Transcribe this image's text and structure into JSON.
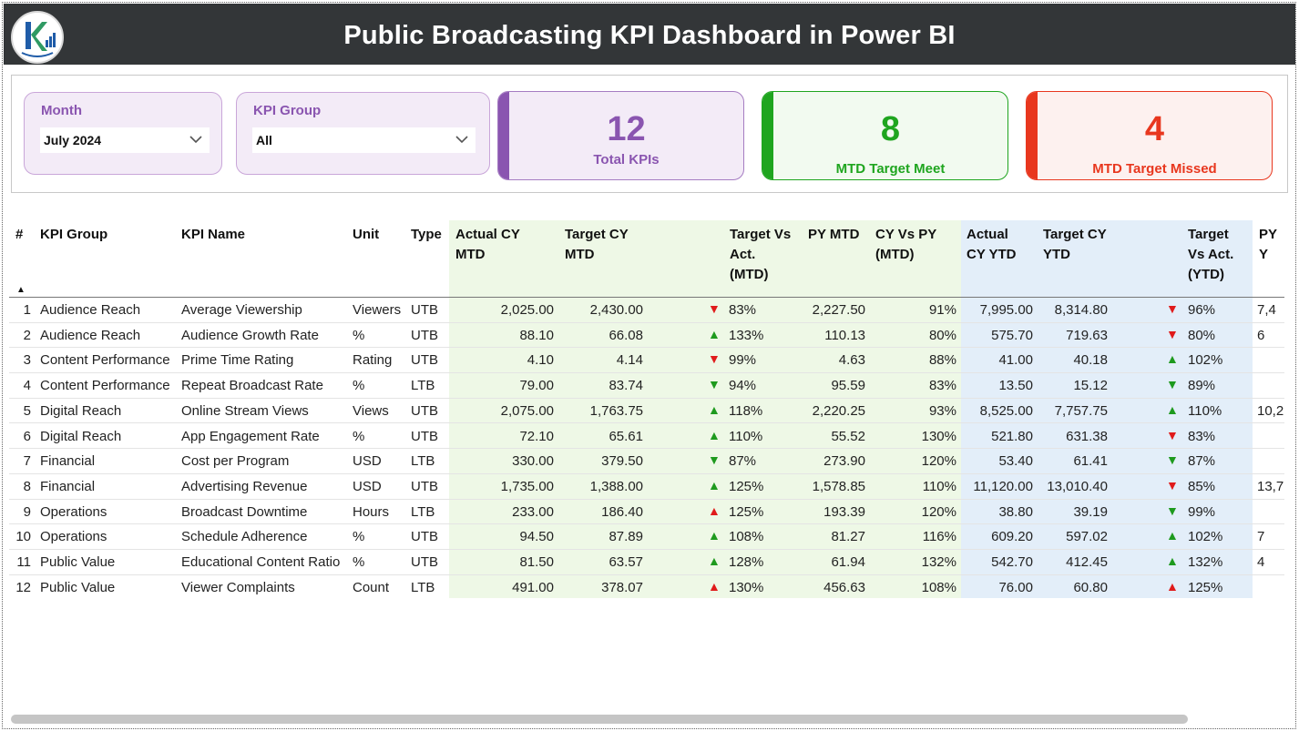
{
  "header": {
    "title": "Public Broadcasting KPI Dashboard in Power BI"
  },
  "filters": {
    "month": {
      "label": "Month",
      "value": "July 2024"
    },
    "kpi_group": {
      "label": "KPI Group",
      "value": "All"
    }
  },
  "cards": {
    "total": {
      "value": "12",
      "caption": "Total KPIs",
      "color": "#8a55b0"
    },
    "meet": {
      "value": "8",
      "caption": "MTD Target Meet",
      "color": "#1fa51f"
    },
    "missed": {
      "value": "4",
      "caption": "MTD Target Missed",
      "color": "#e8371e"
    }
  },
  "table": {
    "headers": {
      "num": "#",
      "group": "KPI Group",
      "name": "KPI Name",
      "unit": "Unit",
      "type": "Type",
      "actual_mtd_1": "Actual CY",
      "actual_mtd_2": "MTD",
      "target_mtd_1": "Target CY",
      "target_mtd_2": "MTD",
      "tva_mtd_1": "Target Vs",
      "tva_mtd_2": "Act.",
      "tva_mtd_3": "(MTD)",
      "py_mtd": "PY MTD",
      "cvp_mtd_1": "CY Vs PY",
      "cvp_mtd_2": "(MTD)",
      "actual_ytd_1": "Actual",
      "actual_ytd_2": "CY YTD",
      "target_ytd_1": "Target CY",
      "target_ytd_2": "YTD",
      "tva_ytd_1": "Target",
      "tva_ytd_2": "Vs Act.",
      "tva_ytd_3": "(YTD)",
      "py_ytd": "PY Y"
    },
    "rows": [
      {
        "num": "1",
        "group": "Audience Reach",
        "name": "Average Viewership",
        "unit": "Viewers",
        "type": "UTB",
        "actual_mtd": "2,025.00",
        "target_mtd": "2,430.00",
        "mtd_icon": "down-red",
        "tva_mtd": "83%",
        "py_mtd": "2,227.50",
        "cvp_mtd": "91%",
        "actual_ytd": "7,995.00",
        "target_ytd": "8,314.80",
        "ytd_icon": "down-red",
        "tva_ytd": "96%",
        "py_ytd": "7,4"
      },
      {
        "num": "2",
        "group": "Audience Reach",
        "name": "Audience Growth Rate",
        "unit": "%",
        "type": "UTB",
        "actual_mtd": "88.10",
        "target_mtd": "66.08",
        "mtd_icon": "up-green",
        "tva_mtd": "133%",
        "py_mtd": "110.13",
        "cvp_mtd": "80%",
        "actual_ytd": "575.70",
        "target_ytd": "719.63",
        "ytd_icon": "down-red",
        "tva_ytd": "80%",
        "py_ytd": "6"
      },
      {
        "num": "3",
        "group": "Content Performance",
        "name": "Prime Time Rating",
        "unit": "Rating",
        "type": "UTB",
        "actual_mtd": "4.10",
        "target_mtd": "4.14",
        "mtd_icon": "down-red",
        "tva_mtd": "99%",
        "py_mtd": "4.63",
        "cvp_mtd": "88%",
        "actual_ytd": "41.00",
        "target_ytd": "40.18",
        "ytd_icon": "up-green",
        "tva_ytd": "102%",
        "py_ytd": ""
      },
      {
        "num": "4",
        "group": "Content Performance",
        "name": "Repeat Broadcast Rate",
        "unit": "%",
        "type": "LTB",
        "actual_mtd": "79.00",
        "target_mtd": "83.74",
        "mtd_icon": "down-green",
        "tva_mtd": "94%",
        "py_mtd": "95.59",
        "cvp_mtd": "83%",
        "actual_ytd": "13.50",
        "target_ytd": "15.12",
        "ytd_icon": "down-green",
        "tva_ytd": "89%",
        "py_ytd": ""
      },
      {
        "num": "5",
        "group": "Digital Reach",
        "name": "Online Stream Views",
        "unit": "Views",
        "type": "UTB",
        "actual_mtd": "2,075.00",
        "target_mtd": "1,763.75",
        "mtd_icon": "up-green",
        "tva_mtd": "118%",
        "py_mtd": "2,220.25",
        "cvp_mtd": "93%",
        "actual_ytd": "8,525.00",
        "target_ytd": "7,757.75",
        "ytd_icon": "up-green",
        "tva_ytd": "110%",
        "py_ytd": "10,2"
      },
      {
        "num": "6",
        "group": "Digital Reach",
        "name": "App Engagement Rate",
        "unit": "%",
        "type": "UTB",
        "actual_mtd": "72.10",
        "target_mtd": "65.61",
        "mtd_icon": "up-green",
        "tva_mtd": "110%",
        "py_mtd": "55.52",
        "cvp_mtd": "130%",
        "actual_ytd": "521.80",
        "target_ytd": "631.38",
        "ytd_icon": "down-red",
        "tva_ytd": "83%",
        "py_ytd": ""
      },
      {
        "num": "7",
        "group": "Financial",
        "name": "Cost per Program",
        "unit": "USD",
        "type": "LTB",
        "actual_mtd": "330.00",
        "target_mtd": "379.50",
        "mtd_icon": "down-green",
        "tva_mtd": "87%",
        "py_mtd": "273.90",
        "cvp_mtd": "120%",
        "actual_ytd": "53.40",
        "target_ytd": "61.41",
        "ytd_icon": "down-green",
        "tva_ytd": "87%",
        "py_ytd": ""
      },
      {
        "num": "8",
        "group": "Financial",
        "name": "Advertising Revenue",
        "unit": "USD",
        "type": "UTB",
        "actual_mtd": "1,735.00",
        "target_mtd": "1,388.00",
        "mtd_icon": "up-green",
        "tva_mtd": "125%",
        "py_mtd": "1,578.85",
        "cvp_mtd": "110%",
        "actual_ytd": "11,120.00",
        "target_ytd": "13,010.40",
        "ytd_icon": "down-red",
        "tva_ytd": "85%",
        "py_ytd": "13,7"
      },
      {
        "num": "9",
        "group": "Operations",
        "name": "Broadcast Downtime",
        "unit": "Hours",
        "type": "LTB",
        "actual_mtd": "233.00",
        "target_mtd": "186.40",
        "mtd_icon": "up-red",
        "tva_mtd": "125%",
        "py_mtd": "193.39",
        "cvp_mtd": "120%",
        "actual_ytd": "38.80",
        "target_ytd": "39.19",
        "ytd_icon": "down-green",
        "tva_ytd": "99%",
        "py_ytd": ""
      },
      {
        "num": "10",
        "group": "Operations",
        "name": "Schedule Adherence",
        "unit": "%",
        "type": "UTB",
        "actual_mtd": "94.50",
        "target_mtd": "87.89",
        "mtd_icon": "up-green",
        "tva_mtd": "108%",
        "py_mtd": "81.27",
        "cvp_mtd": "116%",
        "actual_ytd": "609.20",
        "target_ytd": "597.02",
        "ytd_icon": "up-green",
        "tva_ytd": "102%",
        "py_ytd": "7"
      },
      {
        "num": "11",
        "group": "Public Value",
        "name": "Educational Content Ratio",
        "unit": "%",
        "type": "UTB",
        "actual_mtd": "81.50",
        "target_mtd": "63.57",
        "mtd_icon": "up-green",
        "tva_mtd": "128%",
        "py_mtd": "61.94",
        "cvp_mtd": "132%",
        "actual_ytd": "542.70",
        "target_ytd": "412.45",
        "ytd_icon": "up-green",
        "tva_ytd": "132%",
        "py_ytd": "4"
      },
      {
        "num": "12",
        "group": "Public Value",
        "name": "Viewer Complaints",
        "unit": "Count",
        "type": "LTB",
        "actual_mtd": "491.00",
        "target_mtd": "378.07",
        "mtd_icon": "up-red",
        "tva_mtd": "130%",
        "py_mtd": "456.63",
        "cvp_mtd": "108%",
        "actual_ytd": "76.00",
        "target_ytd": "60.80",
        "ytd_icon": "up-red",
        "tva_ytd": "125%",
        "py_ytd": ""
      }
    ]
  },
  "colors": {
    "header_bg": "#333638",
    "mtd_bg": "#eef8e6",
    "ytd_bg": "#e3eef9",
    "good": "#1e9a1e",
    "bad": "#e01b1b"
  }
}
